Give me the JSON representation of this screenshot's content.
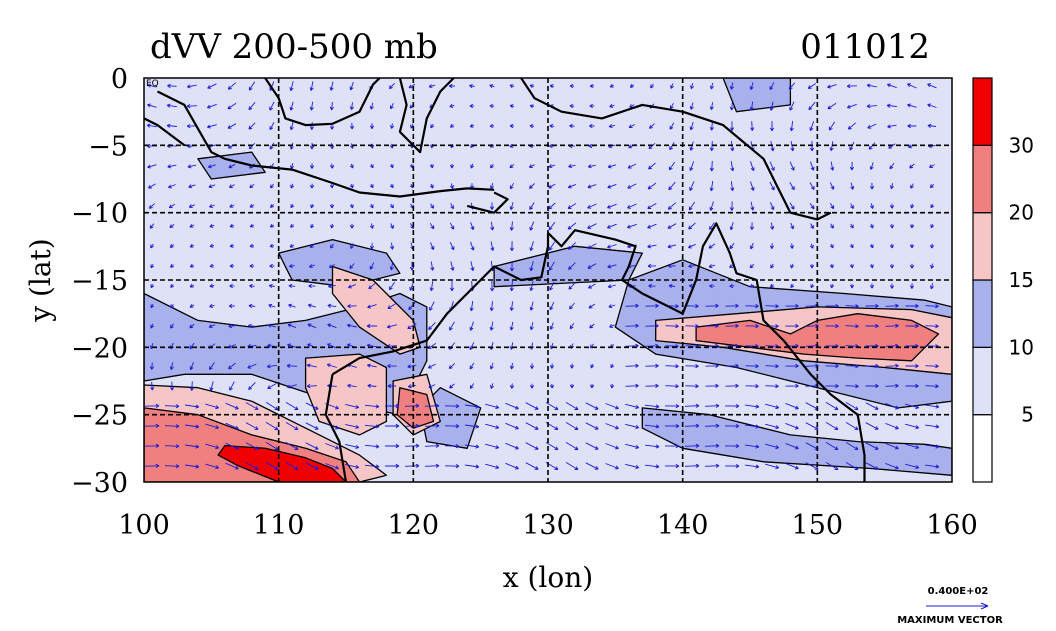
{
  "title": {
    "left": "dVV 200-500 mb",
    "right": "011012"
  },
  "axes": {
    "xlabel": "x (lon)",
    "ylabel": "y (lat)",
    "xticks": [
      {
        "value": 100,
        "label": "100"
      },
      {
        "value": 110,
        "label": "110"
      },
      {
        "value": 120,
        "label": "120"
      },
      {
        "value": 130,
        "label": "130"
      },
      {
        "value": 140,
        "label": "140"
      },
      {
        "value": 150,
        "label": "150"
      },
      {
        "value": 160,
        "label": "160"
      }
    ],
    "yticks": [
      {
        "value": 0,
        "label": "0"
      },
      {
        "value": -5,
        "label": "−5"
      },
      {
        "value": -10,
        "label": "−10"
      },
      {
        "value": -15,
        "label": "−15"
      },
      {
        "value": -20,
        "label": "−20"
      },
      {
        "value": -25,
        "label": "−25"
      },
      {
        "value": -30,
        "label": "−30"
      }
    ],
    "corner_tag": "EQ",
    "xlim": [
      100,
      160
    ],
    "ylim": [
      -30,
      0
    ],
    "grid": true
  },
  "colorbar": {
    "levels": [
      {
        "range": [
          0,
          5
        ],
        "color": "#ffffff"
      },
      {
        "range": [
          5,
          10
        ],
        "color": "#dfe2f6"
      },
      {
        "range": [
          10,
          15
        ],
        "color": "#a9b1ec"
      },
      {
        "range": [
          15,
          20
        ],
        "color": "#f6c6c6"
      },
      {
        "range": [
          20,
          30
        ],
        "color": "#f08080"
      },
      {
        "range": [
          30,
          40
        ],
        "color": "#f00000"
      }
    ],
    "labels": [
      "5",
      "10",
      "15",
      "20",
      "30"
    ]
  },
  "vector_key": {
    "value_label": "0.400E+02",
    "caption": "MAXIMUM VECTOR",
    "color": "#1b1bd9"
  },
  "field_regions": [
    {
      "level": 10,
      "polygons": [
        [
          [
            100,
            -16
          ],
          [
            104,
            -18
          ],
          [
            108,
            -18.5
          ],
          [
            112,
            -18
          ],
          [
            116,
            -17
          ],
          [
            119,
            -16
          ],
          [
            121,
            -17
          ],
          [
            121,
            -21
          ],
          [
            119,
            -25
          ],
          [
            114,
            -24
          ],
          [
            108,
            -22
          ],
          [
            103,
            -22
          ],
          [
            100,
            -22.5
          ]
        ],
        [
          [
            110,
            -13
          ],
          [
            114,
            -12
          ],
          [
            118,
            -13
          ],
          [
            119,
            -14.5
          ],
          [
            115,
            -15.5
          ],
          [
            111,
            -15
          ]
        ],
        [
          [
            122,
            -23
          ],
          [
            125,
            -24.5
          ],
          [
            124,
            -27.5
          ],
          [
            121,
            -27
          ],
          [
            120.5,
            -24.5
          ]
        ],
        [
          [
            126,
            -14
          ],
          [
            132,
            -12.5
          ],
          [
            137,
            -13
          ],
          [
            136,
            -15
          ],
          [
            130,
            -15.3
          ],
          [
            126,
            -15.5
          ]
        ],
        [
          [
            136,
            -15
          ],
          [
            140,
            -13.5
          ],
          [
            145,
            -15.5
          ],
          [
            152,
            -16
          ],
          [
            158,
            -16.5
          ],
          [
            160,
            -17
          ],
          [
            160,
            -24
          ],
          [
            156,
            -24.5
          ],
          [
            150,
            -23
          ],
          [
            144,
            -21.5
          ],
          [
            138,
            -20.5
          ],
          [
            135,
            -18.5
          ]
        ],
        [
          [
            137,
            -24.5
          ],
          [
            142,
            -25
          ],
          [
            148,
            -26.5
          ],
          [
            153,
            -27
          ],
          [
            158,
            -27.2
          ],
          [
            160,
            -27.5
          ],
          [
            160,
            -29.5
          ],
          [
            154,
            -29
          ],
          [
            146,
            -28.5
          ],
          [
            140,
            -27.5
          ],
          [
            137,
            -26
          ]
        ],
        [
          [
            143,
            0
          ],
          [
            148,
            0
          ],
          [
            148,
            -2
          ],
          [
            144,
            -2.5
          ]
        ],
        [
          [
            104,
            -6
          ],
          [
            108,
            -5.5
          ],
          [
            109,
            -7
          ],
          [
            105,
            -7.5
          ]
        ]
      ]
    },
    {
      "level": 15,
      "polygons": [
        [
          [
            100,
            -22.8
          ],
          [
            104,
            -23
          ],
          [
            108,
            -24
          ],
          [
            112,
            -26
          ],
          [
            116,
            -28
          ],
          [
            118,
            -29.5
          ],
          [
            116,
            -30
          ],
          [
            100,
            -30
          ]
        ],
        [
          [
            114,
            -14
          ],
          [
            117,
            -15
          ],
          [
            120,
            -18
          ],
          [
            120.5,
            -20
          ],
          [
            119,
            -20.5
          ],
          [
            116,
            -18.5
          ],
          [
            114,
            -16
          ]
        ],
        [
          [
            112,
            -20.8
          ],
          [
            116,
            -20.5
          ],
          [
            118,
            -21.5
          ],
          [
            118,
            -25.5
          ],
          [
            116,
            -26.5
          ],
          [
            113,
            -25.5
          ],
          [
            112,
            -23
          ]
        ],
        [
          [
            118.5,
            -22.5
          ],
          [
            121,
            -22
          ],
          [
            122,
            -25.5
          ],
          [
            120,
            -26.5
          ],
          [
            118.5,
            -25
          ]
        ],
        [
          [
            138,
            -18
          ],
          [
            144,
            -17.5
          ],
          [
            150,
            -17
          ],
          [
            157,
            -17.2
          ],
          [
            160,
            -17.8
          ],
          [
            160,
            -22
          ],
          [
            155,
            -21.5
          ],
          [
            149,
            -21
          ],
          [
            143,
            -20
          ],
          [
            138,
            -19.5
          ]
        ],
        [
          [
            100,
            -27.5
          ],
          [
            101,
            -27
          ]
        ]
      ]
    },
    {
      "level": 20,
      "polygons": [
        [
          [
            100,
            -24.5
          ],
          [
            104,
            -25
          ],
          [
            108,
            -26.5
          ],
          [
            112,
            -27.5
          ],
          [
            115,
            -28.5
          ],
          [
            116,
            -30
          ],
          [
            100,
            -30
          ]
        ],
        [
          [
            119,
            -23
          ],
          [
            121,
            -23.5
          ],
          [
            121.5,
            -25.5
          ],
          [
            120,
            -26
          ],
          [
            118.8,
            -25
          ]
        ],
        [
          [
            141,
            -18.5
          ],
          [
            145,
            -18
          ],
          [
            148,
            -19
          ],
          [
            150,
            -18
          ],
          [
            153,
            -17.5
          ],
          [
            157,
            -18
          ],
          [
            159,
            -19
          ],
          [
            157,
            -21
          ],
          [
            153,
            -20.8
          ],
          [
            149,
            -20.5
          ],
          [
            145,
            -20
          ],
          [
            141,
            -19.5
          ]
        ]
      ]
    },
    {
      "level": 30,
      "polygons": [
        [
          [
            106,
            -27.3
          ],
          [
            109,
            -27.5
          ],
          [
            112,
            -28.2
          ],
          [
            114,
            -29
          ],
          [
            115,
            -30
          ],
          [
            110,
            -30
          ],
          [
            107,
            -28.8
          ],
          [
            105.5,
            -28
          ]
        ]
      ]
    }
  ],
  "coastlines": [
    [
      [
        101,
        -1
      ],
      [
        103,
        -2
      ],
      [
        105,
        -5.5
      ],
      [
        106,
        -6
      ],
      [
        108,
        -6.5
      ],
      [
        111,
        -6.8
      ],
      [
        114,
        -7.8
      ],
      [
        116,
        -8.5
      ],
      [
        119,
        -8.8
      ],
      [
        122,
        -8.4
      ],
      [
        124,
        -8.2
      ],
      [
        126,
        -8.3
      ]
    ],
    [
      [
        109,
        0
      ],
      [
        110,
        -1.5
      ],
      [
        110.5,
        -3
      ],
      [
        112,
        -3.5
      ],
      [
        114,
        -3.4
      ],
      [
        116,
        -2.5
      ],
      [
        117,
        -0.5
      ],
      [
        117.5,
        0
      ]
    ],
    [
      [
        119,
        0
      ],
      [
        119.5,
        -2
      ],
      [
        119,
        -4
      ],
      [
        120.5,
        -5.5
      ],
      [
        121,
        -3
      ],
      [
        122,
        -1
      ],
      [
        123,
        0
      ]
    ],
    [
      [
        124,
        -9.5
      ],
      [
        126,
        -10
      ],
      [
        127,
        -9
      ],
      [
        126,
        -8.5
      ]
    ],
    [
      [
        128,
        0
      ],
      [
        129,
        -1.5
      ],
      [
        131,
        -2.5
      ],
      [
        134,
        -3
      ],
      [
        137,
        -2
      ],
      [
        140,
        -2.5
      ],
      [
        143,
        -3.5
      ],
      [
        146,
        -6
      ],
      [
        147,
        -8
      ],
      [
        148,
        -10
      ],
      [
        150,
        -10.5
      ],
      [
        151,
        -10
      ]
    ],
    [
      [
        130,
        -11.5
      ],
      [
        131,
        -12.5
      ],
      [
        132,
        -11.3
      ],
      [
        135,
        -12
      ],
      [
        136.5,
        -12.5
      ],
      [
        136,
        -14
      ],
      [
        135.5,
        -15
      ],
      [
        137,
        -16
      ],
      [
        139,
        -17
      ],
      [
        140,
        -17.5
      ],
      [
        141,
        -15
      ],
      [
        141.5,
        -12.5
      ],
      [
        142.5,
        -10.8
      ],
      [
        143.5,
        -13
      ],
      [
        144,
        -14.5
      ],
      [
        145.5,
        -15
      ],
      [
        146,
        -18
      ],
      [
        147.5,
        -19.5
      ],
      [
        149.5,
        -22
      ],
      [
        151,
        -23.5
      ],
      [
        153,
        -25
      ],
      [
        153.5,
        -28
      ],
      [
        153.5,
        -30
      ]
    ],
    [
      [
        114,
        -22
      ],
      [
        113.5,
        -25
      ],
      [
        114.5,
        -27
      ],
      [
        115,
        -30
      ]
    ],
    [
      [
        114,
        -22
      ],
      [
        116,
        -20.8
      ],
      [
        118.5,
        -20.3
      ],
      [
        121,
        -19.5
      ],
      [
        122.5,
        -17.5
      ],
      [
        124,
        -16
      ],
      [
        126,
        -14
      ],
      [
        128,
        -15
      ],
      [
        129.5,
        -14.8
      ],
      [
        130,
        -12.5
      ],
      [
        130,
        -11.5
      ]
    ],
    [
      [
        100,
        -3
      ],
      [
        101,
        -3.5
      ],
      [
        103,
        -5
      ]
    ]
  ]
}
